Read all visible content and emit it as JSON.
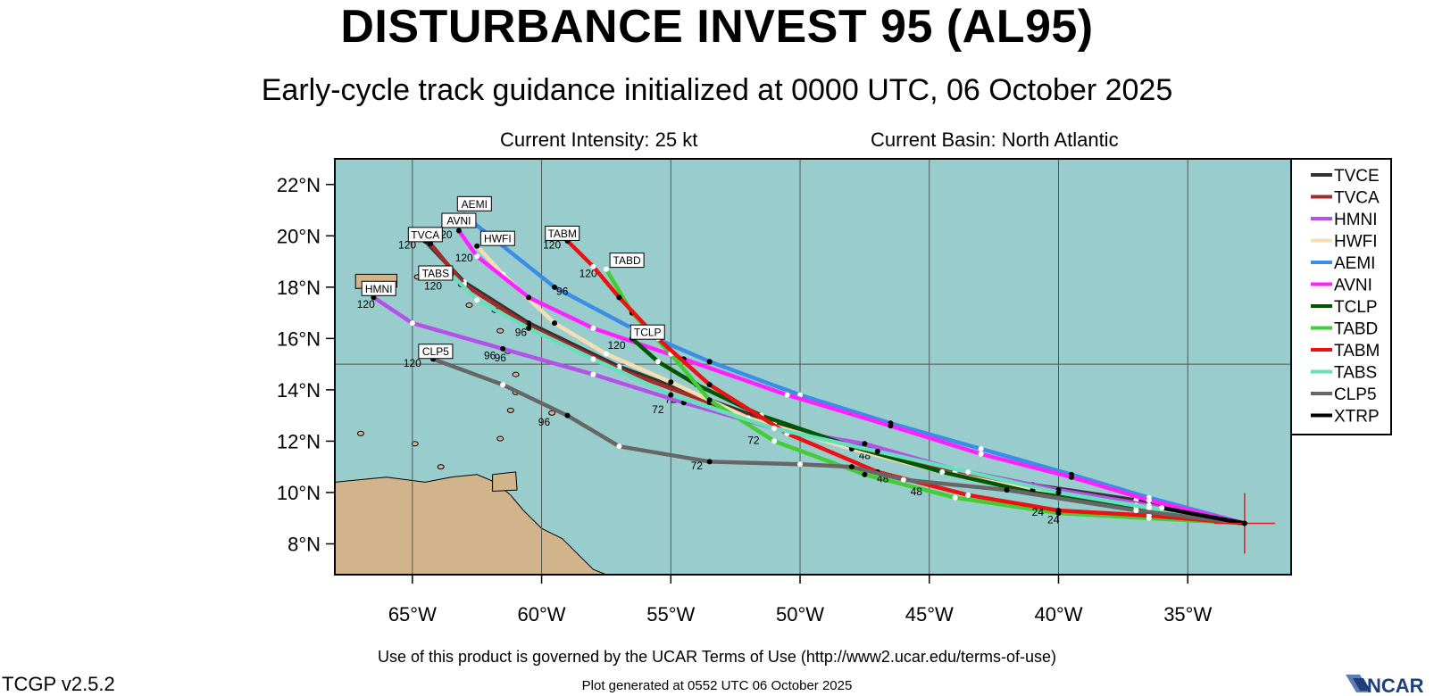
{
  "title": "DISTURBANCE INVEST 95 (AL95)",
  "subtitle": "Early-cycle track guidance initialized at 0000 UTC, 06 October 2025",
  "current_intensity": "Current Intensity: 25 kt",
  "current_basin": "Current Basin: North Atlantic",
  "terms_of_use": "Use of this product is governed by the UCAR Terms of Use (http://www2.ucar.edu/terms-of-use)",
  "plot_generated": "Plot generated at 0552 UTC   06 October 2025",
  "version": "TCGP v2.5.2",
  "logo_text": "NCAR",
  "map": {
    "lon_range": [
      -68.0,
      -31.0
    ],
    "lat_range": [
      6.8,
      23.0
    ],
    "lat_ticks": [
      {
        "value": 8,
        "label": "8°N"
      },
      {
        "value": 10,
        "label": "10°N"
      },
      {
        "value": 12,
        "label": "12°N"
      },
      {
        "value": 14,
        "label": "14°N"
      },
      {
        "value": 16,
        "label": "16°N"
      },
      {
        "value": 18,
        "label": "18°N"
      },
      {
        "value": 20,
        "label": "20°N"
      },
      {
        "value": 22,
        "label": "22°N"
      }
    ],
    "lon_ticks": [
      {
        "value": -65,
        "label": "65°W"
      },
      {
        "value": -60,
        "label": "60°W"
      },
      {
        "value": -55,
        "label": "55°W"
      },
      {
        "value": -50,
        "label": "50°W"
      },
      {
        "value": -45,
        "label": "45°W"
      },
      {
        "value": -40,
        "label": "40°W"
      },
      {
        "value": -35,
        "label": "35°W"
      }
    ],
    "grid_lats": [
      15
    ],
    "grid_lons": [
      -65,
      -60,
      -55,
      -50,
      -45,
      -40,
      -35
    ],
    "ocean_color": "#99cccc",
    "land_color": "#d2b48c",
    "storm_position": [
      -32.8,
      8.8
    ]
  },
  "chart_data": {
    "type": "map-tracks",
    "storm_initial_position": [
      -32.8,
      8.8
    ],
    "models": [
      {
        "name": "TVCE",
        "color": "#333333",
        "points": [
          [
            -32.8,
            8.8
          ],
          [
            -37,
            9.7
          ],
          [
            -41,
            10.3
          ],
          [
            -44,
            10.9
          ],
          [
            -47,
            11.6
          ],
          [
            -51,
            12.7
          ],
          [
            -53.5,
            13.6
          ],
          [
            -57,
            14.9
          ],
          [
            -60.5,
            16.6
          ],
          [
            -63,
            18.2
          ],
          [
            -64.5,
            19.8
          ]
        ],
        "labels": [
          {
            "t": "24",
            "at": [
              -41,
              9.9
            ]
          },
          {
            "t": "48",
            "at": [
              -47.5,
              11.3
            ]
          },
          {
            "t": "72",
            "at": [
              -55,
              13.5
            ]
          },
          {
            "t": "96",
            "at": [
              -60.8,
              16.1
            ]
          },
          {
            "t": "120",
            "at": [
              -65.2,
              19.5
            ]
          }
        ]
      },
      {
        "name": "TVCA",
        "color": "#a52a2a",
        "points": [
          [
            -32.8,
            8.8
          ],
          [
            -37,
            9.6
          ],
          [
            -41,
            10.2
          ],
          [
            -44,
            10.8
          ],
          [
            -47,
            11.5
          ],
          [
            -51,
            12.6
          ],
          [
            -53.5,
            13.5
          ],
          [
            -57,
            14.8
          ],
          [
            -60.5,
            16.5
          ],
          [
            -63,
            18.1
          ],
          [
            -64.3,
            19.7
          ]
        ],
        "labels": []
      },
      {
        "name": "HMNI",
        "color": "#b452e8",
        "points": [
          [
            -32.8,
            8.8
          ],
          [
            -36.5,
            9.5
          ],
          [
            -40,
            10.1
          ],
          [
            -44,
            10.9
          ],
          [
            -47.5,
            11.9
          ],
          [
            -51,
            12.5
          ],
          [
            -54.5,
            13.5
          ],
          [
            -58,
            14.6
          ],
          [
            -61.5,
            15.6
          ],
          [
            -65,
            16.6
          ],
          [
            -66.5,
            17.6
          ]
        ],
        "labels": [
          {
            "t": "72",
            "at": [
              -55.5,
              13.1
            ]
          },
          {
            "t": "96",
            "at": [
              -62,
              15.2
            ]
          },
          {
            "t": "120",
            "at": [
              -66.8,
              17.2
            ]
          }
        ]
      },
      {
        "name": "HWFI",
        "color": "#f5deb3",
        "points": [
          [
            -32.8,
            8.8
          ],
          [
            -37,
            9.5
          ],
          [
            -41,
            10.1
          ],
          [
            -44.5,
            10.8
          ],
          [
            -48,
            11.7
          ],
          [
            -52,
            12.9
          ],
          [
            -55,
            14.3
          ],
          [
            -57.5,
            15.4
          ],
          [
            -59.5,
            16.6
          ],
          [
            -61.5,
            18.5
          ],
          [
            -62.5,
            19.6
          ]
        ],
        "labels": [
          {
            "t": "120",
            "at": [
              -63,
              19.0
            ]
          }
        ]
      },
      {
        "name": "AEMI",
        "color": "#3a8ee6",
        "points": [
          [
            -32.8,
            8.8
          ],
          [
            -36.5,
            9.8
          ],
          [
            -39.5,
            10.7
          ],
          [
            -43,
            11.7
          ],
          [
            -46.5,
            12.7
          ],
          [
            -50,
            13.8
          ],
          [
            -53.5,
            15.1
          ],
          [
            -56.5,
            16.4
          ],
          [
            -59.5,
            18.0
          ],
          [
            -62,
            20.0
          ],
          [
            -63,
            20.8
          ]
        ],
        "labels": [
          {
            "t": "120",
            "at": [
              -63.4,
              20.4
            ]
          }
        ]
      },
      {
        "name": "AVNI",
        "color": "#ff22ff",
        "points": [
          [
            -32.8,
            8.8
          ],
          [
            -36.5,
            9.7
          ],
          [
            -39.5,
            10.6
          ],
          [
            -43,
            11.5
          ],
          [
            -46.5,
            12.6
          ],
          [
            -50.5,
            13.8
          ],
          [
            -54.5,
            15.2
          ],
          [
            -58,
            16.4
          ],
          [
            -60.5,
            17.6
          ],
          [
            -62.5,
            19.2
          ],
          [
            -63.2,
            20.2
          ]
        ],
        "labels": [
          {
            "t": "120",
            "at": [
              -63.8,
              19.9
            ]
          }
        ]
      },
      {
        "name": "TCLP",
        "color": "#005500",
        "points": [
          [
            -32.8,
            8.8
          ],
          [
            -37,
            9.4
          ],
          [
            -41,
            10.0
          ],
          [
            -44.5,
            10.8
          ],
          [
            -48,
            11.8
          ],
          [
            -51.5,
            13.0
          ],
          [
            -54,
            14.2
          ],
          [
            -55.5,
            15.1
          ],
          [
            -56.5,
            16.0
          ]
        ],
        "labels": [
          {
            "t": "120",
            "at": [
              -57.1,
              15.6
            ]
          }
        ]
      },
      {
        "name": "TABD",
        "color": "#44cc33",
        "points": [
          [
            -32.8,
            8.8
          ],
          [
            -36.5,
            9.0
          ],
          [
            -40,
            9.2
          ],
          [
            -44,
            9.8
          ],
          [
            -47.5,
            10.7
          ],
          [
            -51,
            12.0
          ],
          [
            -53.5,
            13.6
          ],
          [
            -55,
            15.4
          ],
          [
            -56.5,
            17.0
          ],
          [
            -57.5,
            18.7
          ]
        ],
        "labels": [
          {
            "t": "24",
            "at": [
              -40.2,
              8.8
            ]
          },
          {
            "t": "48",
            "at": [
              -46.8,
              10.4
            ]
          },
          {
            "t": "72",
            "at": [
              -51.8,
              11.9
            ]
          },
          {
            "t": "120",
            "at": [
              -58.2,
              18.4
            ]
          }
        ]
      },
      {
        "name": "TABM",
        "color": "#ee1111",
        "points": [
          [
            -32.8,
            8.8
          ],
          [
            -36.5,
            9.1
          ],
          [
            -40,
            9.3
          ],
          [
            -43.5,
            9.9
          ],
          [
            -47,
            10.8
          ],
          [
            -50.5,
            12.3
          ],
          [
            -53.5,
            14.2
          ],
          [
            -55.5,
            16.0
          ],
          [
            -57,
            17.6
          ],
          [
            -58,
            18.8
          ],
          [
            -59,
            19.8
          ]
        ],
        "labels": [
          {
            "t": "24",
            "at": [
              -40.8,
              9.1
            ]
          },
          {
            "t": "48",
            "at": [
              -45.5,
              9.9
            ]
          },
          {
            "t": "96",
            "at": [
              -59.2,
              17.7
            ]
          },
          {
            "t": "120",
            "at": [
              -59.6,
              19.5
            ]
          }
        ]
      },
      {
        "name": "TABS",
        "color": "#66e0bb",
        "points": [
          [
            -32.8,
            8.8
          ],
          [
            -36.5,
            9.4
          ],
          [
            -40,
            10.0
          ],
          [
            -43.5,
            10.8
          ],
          [
            -47,
            11.6
          ],
          [
            -51,
            12.5
          ],
          [
            -55,
            13.8
          ],
          [
            -58,
            15.2
          ],
          [
            -60.5,
            16.4
          ],
          [
            -62.5,
            17.5
          ],
          [
            -63.5,
            18.5
          ]
        ],
        "labels": [
          {
            "t": "96",
            "at": [
              -61.6,
              15.1
            ]
          },
          {
            "t": "120",
            "at": [
              -64.2,
              17.9
            ]
          }
        ]
      },
      {
        "name": "CLP5",
        "color": "#666666",
        "points": [
          [
            -32.8,
            8.8
          ],
          [
            -37,
            9.3
          ],
          [
            -42,
            10.1
          ],
          [
            -46,
            10.5
          ],
          [
            -48,
            11.0
          ],
          [
            -50,
            11.1
          ],
          [
            -53.5,
            11.2
          ],
          [
            -57,
            11.8
          ],
          [
            -59,
            13.0
          ],
          [
            -61.5,
            14.2
          ],
          [
            -64.2,
            15.2
          ]
        ],
        "labels": [
          {
            "t": "72",
            "at": [
              -54,
              10.9
            ]
          },
          {
            "t": "96",
            "at": [
              -59.9,
              12.6
            ]
          },
          {
            "t": "120",
            "at": [
              -65,
              14.9
            ]
          }
        ]
      },
      {
        "name": "XTRP",
        "color": "#000000",
        "points": [
          [
            -32.8,
            8.8
          ],
          [
            -36,
            9.4
          ]
        ],
        "labels": []
      }
    ],
    "box_labels": [
      {
        "t": "AEMI",
        "at": [
          -62.6,
          21.25
        ]
      },
      {
        "t": "AVNI",
        "at": [
          -63.2,
          20.6
        ]
      },
      {
        "t": "TVCA",
        "at": [
          -64.5,
          20.05
        ]
      },
      {
        "t": "HWFI",
        "at": [
          -61.7,
          19.9
        ]
      },
      {
        "t": "TABM",
        "at": [
          -59.2,
          20.1
        ]
      },
      {
        "t": "TABD",
        "at": [
          -56.7,
          19.05
        ]
      },
      {
        "t": "TABS",
        "at": [
          -64.1,
          18.55
        ]
      },
      {
        "t": "HMNI",
        "at": [
          -66.3,
          17.95
        ]
      },
      {
        "t": "TCLP",
        "at": [
          -55.9,
          16.25
        ]
      },
      {
        "t": "CLP5",
        "at": [
          -64.1,
          15.5
        ]
      }
    ]
  },
  "legend": [
    {
      "name": "TVCE",
      "color": "#333333"
    },
    {
      "name": "TVCA",
      "color": "#a52a2a"
    },
    {
      "name": "HMNI",
      "color": "#b452e8"
    },
    {
      "name": "HWFI",
      "color": "#f5deb3"
    },
    {
      "name": "AEMI",
      "color": "#3a8ee6"
    },
    {
      "name": "AVNI",
      "color": "#ff22ff"
    },
    {
      "name": "TCLP",
      "color": "#005500"
    },
    {
      "name": "TABD",
      "color": "#44cc33"
    },
    {
      "name": "TABM",
      "color": "#ee1111"
    },
    {
      "name": "TABS",
      "color": "#66e0bb"
    },
    {
      "name": "CLP5",
      "color": "#666666"
    },
    {
      "name": "XTRP",
      "color": "#000000"
    }
  ]
}
